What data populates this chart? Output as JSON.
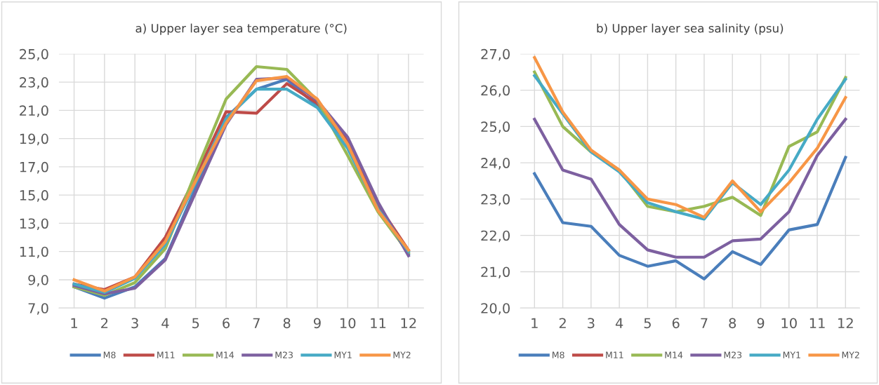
{
  "chart_data": [
    {
      "type": "line",
      "title": "a) Upper layer sea temperature (°C)",
      "categories": [
        "1",
        "2",
        "3",
        "4",
        "5",
        "6",
        "7",
        "8",
        "9",
        "10",
        "11",
        "12"
      ],
      "series": [
        {
          "name": "M8",
          "color": "#4a7ebb",
          "values": [
            8.5,
            7.7,
            8.5,
            10.5,
            15.5,
            20.5,
            22.5,
            23.2,
            21.3,
            18.7,
            14.2,
            10.8
          ]
        },
        {
          "name": "M11",
          "color": "#be4b48",
          "values": [
            8.7,
            8.3,
            9.2,
            12.0,
            16.3,
            20.9,
            20.8,
            22.9,
            21.5,
            18.8,
            14.3,
            11.1
          ]
        },
        {
          "name": "M14",
          "color": "#98b954",
          "values": [
            8.5,
            7.9,
            8.8,
            11.2,
            16.6,
            21.8,
            24.1,
            23.9,
            21.7,
            17.8,
            13.8,
            10.9
          ]
        },
        {
          "name": "M23",
          "color": "#7d60a0",
          "values": [
            8.6,
            8.0,
            8.4,
            10.4,
            15.2,
            20.0,
            23.2,
            23.3,
            21.7,
            19.1,
            14.5,
            10.7
          ]
        },
        {
          "name": "MY1",
          "color": "#46aac5",
          "values": [
            8.7,
            8.1,
            9.1,
            11.5,
            15.9,
            20.4,
            22.5,
            22.5,
            21.2,
            18.3,
            14.0,
            11.0
          ]
        },
        {
          "name": "MY2",
          "color": "#f79646",
          "values": [
            9.0,
            8.2,
            9.2,
            11.7,
            16.0,
            20.1,
            23.1,
            23.4,
            21.8,
            18.6,
            13.9,
            11.1
          ]
        }
      ],
      "ylim": [
        7,
        25
      ],
      "yticks": [
        {
          "value": 7,
          "label": "7,0"
        },
        {
          "value": 9,
          "label": "9,0"
        },
        {
          "value": 11,
          "label": "11,0"
        },
        {
          "value": 13,
          "label": "13,0"
        },
        {
          "value": 15,
          "label": "15,0"
        },
        {
          "value": 17,
          "label": "17,0"
        },
        {
          "value": 19,
          "label": "19,0"
        },
        {
          "value": 21,
          "label": "21,0"
        },
        {
          "value": 23,
          "label": "23,0"
        },
        {
          "value": 25,
          "label": "25,0"
        }
      ],
      "grid": true,
      "legend": "bottom",
      "line_style": "solid"
    },
    {
      "type": "line",
      "title": "b) Upper layer sea salinity (psu)",
      "categories": [
        "1",
        "2",
        "3",
        "4",
        "5",
        "6",
        "7",
        "8",
        "9",
        "10",
        "11",
        "12"
      ],
      "series": [
        {
          "name": "M8",
          "color": "#4a7ebb",
          "values": [
            23.7,
            22.35,
            22.25,
            21.45,
            21.15,
            21.3,
            20.8,
            21.55,
            21.2,
            22.15,
            22.3,
            24.15
          ]
        },
        {
          "name": "M11",
          "color": "#be4b48",
          "values": [
            null,
            null,
            null,
            null,
            null,
            null,
            null,
            null,
            null,
            null,
            null,
            null
          ]
        },
        {
          "name": "M14",
          "color": "#98b954",
          "values": [
            26.5,
            25.0,
            24.3,
            23.8,
            22.8,
            22.65,
            22.8,
            23.05,
            22.55,
            24.45,
            24.85,
            26.35
          ]
        },
        {
          "name": "M23",
          "color": "#7d60a0",
          "values": [
            25.2,
            23.8,
            23.55,
            22.3,
            21.6,
            21.4,
            21.4,
            21.85,
            21.9,
            22.65,
            24.2,
            25.2
          ]
        },
        {
          "name": "MY1",
          "color": "#46aac5",
          "values": [
            26.4,
            25.35,
            24.3,
            23.75,
            22.9,
            22.65,
            22.45,
            23.45,
            22.85,
            23.8,
            25.2,
            26.3
          ]
        },
        {
          "name": "MY2",
          "color": "#f79646",
          "values": [
            26.9,
            25.4,
            24.35,
            23.8,
            23.0,
            22.85,
            22.5,
            23.5,
            22.65,
            23.45,
            24.4,
            25.8
          ]
        }
      ],
      "ylim": [
        20,
        27
      ],
      "yticks": [
        {
          "value": 20,
          "label": "20,0"
        },
        {
          "value": 21,
          "label": "21,0"
        },
        {
          "value": 22,
          "label": "22,0"
        },
        {
          "value": 23,
          "label": "23,0"
        },
        {
          "value": 24,
          "label": "24,0"
        },
        {
          "value": 25,
          "label": "25,0"
        },
        {
          "value": 26,
          "label": "26,0"
        },
        {
          "value": 27,
          "label": "27,0"
        }
      ],
      "grid": true,
      "legend": "bottom",
      "line_style": "solid"
    }
  ]
}
